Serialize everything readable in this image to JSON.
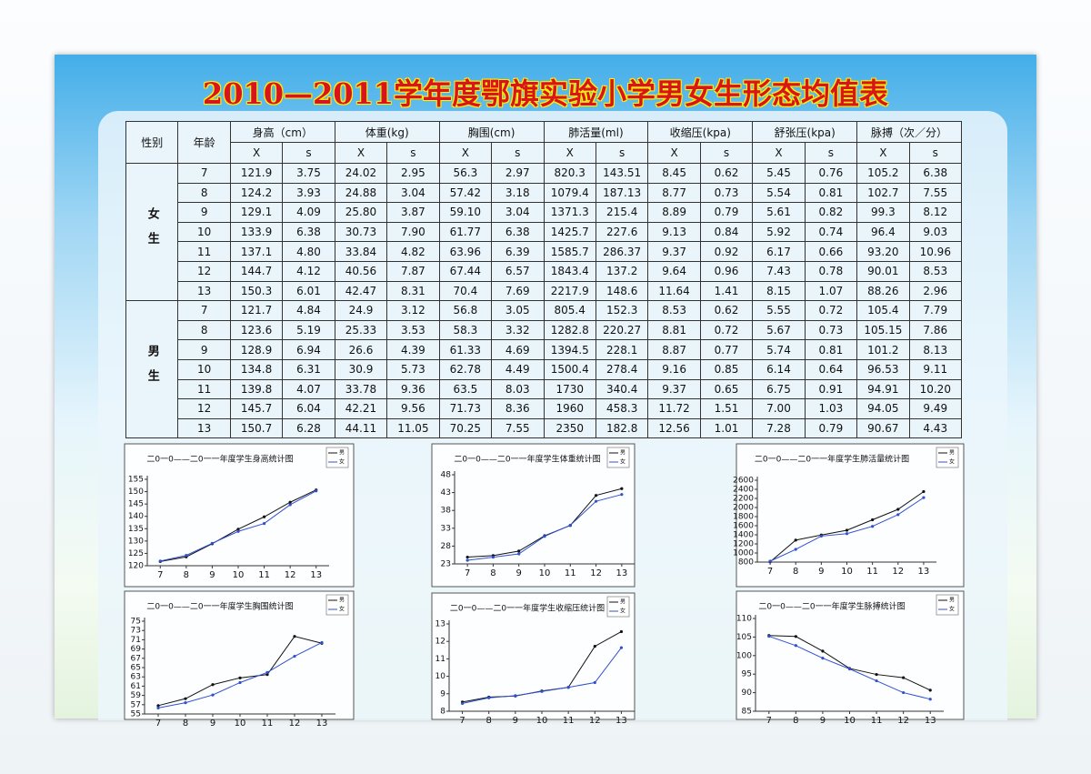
{
  "title": "2010—2011学年度鄂旗实验小学男女生形态均值表",
  "table": {
    "header": [
      "性别",
      "年龄",
      "身高（cm）",
      "体重(kg)",
      "胸围(cm)",
      "肺活量(ml)",
      "收缩压(kpa)",
      "舒张压(kpa)",
      "脉搏（次／分）"
    ],
    "subheader": [
      "X",
      "s"
    ],
    "groups": [
      {
        "label": "女生",
        "rows": [
          [
            "7",
            "121.9",
            "3.75",
            "24.02",
            "2.95",
            "56.3",
            "2.97",
            "820.3",
            "143.51",
            "8.45",
            "0.62",
            "5.45",
            "0.76",
            "105.2",
            "6.38"
          ],
          [
            "8",
            "124.2",
            "3.93",
            "24.88",
            "3.04",
            "57.42",
            "3.18",
            "1079.4",
            "187.13",
            "8.77",
            "0.73",
            "5.54",
            "0.81",
            "102.7",
            "7.55"
          ],
          [
            "9",
            "129.1",
            "4.09",
            "25.80",
            "3.87",
            "59.10",
            "3.04",
            "1371.3",
            "215.4",
            "8.89",
            "0.79",
            "5.61",
            "0.82",
            "99.3",
            "8.12"
          ],
          [
            "10",
            "133.9",
            "6.38",
            "30.73",
            "7.90",
            "61.77",
            "6.38",
            "1425.7",
            "227.6",
            "9.13",
            "0.84",
            "5.92",
            "0.74",
            "96.4",
            "9.03"
          ],
          [
            "11",
            "137.1",
            "4.80",
            "33.84",
            "4.82",
            "63.96",
            "6.39",
            "1585.7",
            "286.37",
            "9.37",
            "0.92",
            "6.17",
            "0.66",
            "93.20",
            "10.96"
          ],
          [
            "12",
            "144.7",
            "4.12",
            "40.56",
            "7.87",
            "67.44",
            "6.57",
            "1843.4",
            "137.2",
            "9.64",
            "0.96",
            "7.43",
            "0.78",
            "90.01",
            "8.53"
          ],
          [
            "13",
            "150.3",
            "6.01",
            "42.47",
            "8.31",
            "70.4",
            "7.69",
            "2217.9",
            "148.6",
            "11.64",
            "1.41",
            "8.15",
            "1.07",
            "88.26",
            "2.96"
          ]
        ]
      },
      {
        "label": "男生",
        "rows": [
          [
            "7",
            "121.7",
            "4.84",
            "24.9",
            "3.12",
            "56.8",
            "3.05",
            "805.4",
            "152.3",
            "8.53",
            "0.62",
            "5.55",
            "0.72",
            "105.4",
            "7.79"
          ],
          [
            "8",
            "123.6",
            "5.19",
            "25.33",
            "3.53",
            "58.3",
            "3.32",
            "1282.8",
            "220.27",
            "8.81",
            "0.72",
            "5.67",
            "0.73",
            "105.15",
            "7.86"
          ],
          [
            "9",
            "128.9",
            "6.94",
            "26.6",
            "4.39",
            "61.33",
            "4.69",
            "1394.5",
            "228.1",
            "8.87",
            "0.77",
            "5.74",
            "0.81",
            "101.2",
            "8.13"
          ],
          [
            "10",
            "134.8",
            "6.31",
            "30.9",
            "5.73",
            "62.78",
            "4.49",
            "1500.4",
            "278.4",
            "9.16",
            "0.85",
            "6.14",
            "0.64",
            "96.53",
            "9.11"
          ],
          [
            "11",
            "139.8",
            "4.07",
            "33.78",
            "9.36",
            "63.5",
            "8.03",
            "1730",
            "340.4",
            "9.37",
            "0.65",
            "6.75",
            "0.91",
            "94.91",
            "10.20"
          ],
          [
            "12",
            "145.7",
            "6.04",
            "42.21",
            "9.56",
            "71.73",
            "8.36",
            "1960",
            "458.3",
            "11.72",
            "1.51",
            "7.00",
            "1.03",
            "94.05",
            "9.49"
          ],
          [
            "13",
            "150.7",
            "6.28",
            "44.11",
            "11.05",
            "70.25",
            "7.55",
            "2350",
            "182.8",
            "12.56",
            "1.01",
            "7.28",
            "0.79",
            "90.67",
            "4.43"
          ]
        ]
      }
    ]
  },
  "chart_data": [
    {
      "type": "line",
      "title": "二0一0——二0一一年度学生身高统计图",
      "x": [
        7,
        8,
        9,
        10,
        11,
        12,
        13
      ],
      "xticks": [
        7,
        8,
        9,
        10,
        11,
        12,
        13
      ],
      "xlim": [
        6.5,
        13.5
      ],
      "ylim": [
        120,
        155
      ],
      "yticks": [
        120,
        125,
        130,
        135,
        140,
        145,
        150,
        155
      ],
      "legend": "upper right",
      "series": [
        {
          "name": "男",
          "color": "#111111",
          "values": [
            121.7,
            123.6,
            128.9,
            134.8,
            139.8,
            145.7,
            150.7
          ]
        },
        {
          "name": "女",
          "color": "#3050d0",
          "values": [
            121.9,
            124.2,
            129.1,
            133.9,
            137.1,
            144.7,
            150.3
          ]
        }
      ]
    },
    {
      "type": "line",
      "title": "二0一0——二0一一年度学生体重统计图",
      "x": [
        7,
        8,
        9,
        10,
        11,
        12,
        13
      ],
      "xticks": [
        7,
        8,
        9,
        10,
        11,
        12,
        13
      ],
      "xlim": [
        6.5,
        13.5
      ],
      "ylim": [
        23,
        48
      ],
      "yticks": [
        23,
        28,
        33,
        38,
        43,
        48
      ],
      "legend": "upper right",
      "series": [
        {
          "name": "男",
          "color": "#111111",
          "values": [
            24.9,
            25.33,
            26.6,
            30.9,
            33.78,
            42.21,
            44.11
          ]
        },
        {
          "name": "女",
          "color": "#3050d0",
          "values": [
            24.02,
            24.88,
            25.8,
            30.73,
            33.84,
            40.56,
            42.47
          ]
        }
      ]
    },
    {
      "type": "line",
      "title": "二0一0——二0一一年度学生肺活量统计图",
      "x": [
        7,
        8,
        9,
        10,
        11,
        12,
        13
      ],
      "xticks": [
        7,
        8,
        9,
        10,
        11,
        12,
        13
      ],
      "xlim": [
        6.5,
        13.5
      ],
      "ylim": [
        800,
        2600
      ],
      "yticks": [
        800,
        1000,
        1200,
        1400,
        1600,
        1800,
        2000,
        2200,
        2400,
        2600
      ],
      "legend": "upper right",
      "series": [
        {
          "name": "男",
          "color": "#111111",
          "values": [
            805.4,
            1282.8,
            1394.5,
            1500.4,
            1730,
            1960,
            2350
          ]
        },
        {
          "name": "女",
          "color": "#3050d0",
          "values": [
            820.3,
            1079.4,
            1371.3,
            1425.7,
            1585.7,
            1843.4,
            2217.9
          ]
        }
      ]
    },
    {
      "type": "line",
      "title": "二0一0——二0一一年度学生胸围统计图",
      "x": [
        7,
        8,
        9,
        10,
        11,
        12,
        13
      ],
      "xticks": [
        7,
        8,
        9,
        10,
        11,
        12,
        13
      ],
      "xlim": [
        6.5,
        13.5
      ],
      "ylim": [
        55,
        75
      ],
      "yticks": [
        55,
        57,
        59,
        61,
        63,
        65,
        67,
        69,
        71,
        73,
        75
      ],
      "legend": "upper right",
      "series": [
        {
          "name": "男",
          "color": "#111111",
          "values": [
            56.8,
            58.3,
            61.33,
            62.78,
            63.5,
            71.73,
            70.25
          ]
        },
        {
          "name": "女",
          "color": "#3050d0",
          "values": [
            56.3,
            57.42,
            59.1,
            61.77,
            63.96,
            67.44,
            70.4
          ]
        }
      ]
    },
    {
      "type": "line",
      "title": "二0一0——二0一一年度学生收缩压统计图",
      "x": [
        7,
        8,
        9,
        10,
        11,
        12,
        13
      ],
      "xticks": [
        7,
        8,
        9,
        10,
        11,
        12,
        13
      ],
      "xlim": [
        6.5,
        13.5
      ],
      "ylim": [
        8,
        13
      ],
      "yticks": [
        8,
        9,
        10,
        11,
        12,
        13
      ],
      "legend": "upper right",
      "series": [
        {
          "name": "男",
          "color": "#111111",
          "values": [
            8.53,
            8.81,
            8.87,
            9.16,
            9.37,
            11.72,
            12.56
          ]
        },
        {
          "name": "女",
          "color": "#3050d0",
          "values": [
            8.45,
            8.77,
            8.89,
            9.13,
            9.37,
            9.64,
            11.64
          ]
        }
      ]
    },
    {
      "type": "line",
      "title": "二0一0——二0一一年度学生脉搏统计图",
      "x": [
        7,
        8,
        9,
        10,
        11,
        12,
        13
      ],
      "xticks": [
        7,
        8,
        9,
        10,
        11,
        12,
        13
      ],
      "xlim": [
        6.5,
        13.5
      ],
      "ylim": [
        85,
        110
      ],
      "yticks": [
        85,
        90,
        95,
        100,
        105,
        110
      ],
      "legend": "upper right",
      "series": [
        {
          "name": "男",
          "color": "#111111",
          "values": [
            105.4,
            105.15,
            101.2,
            96.53,
            94.91,
            94.05,
            90.67
          ]
        },
        {
          "name": "女",
          "color": "#3050d0",
          "values": [
            105.2,
            102.7,
            99.3,
            96.4,
            93.2,
            90.01,
            88.26
          ]
        }
      ]
    }
  ]
}
